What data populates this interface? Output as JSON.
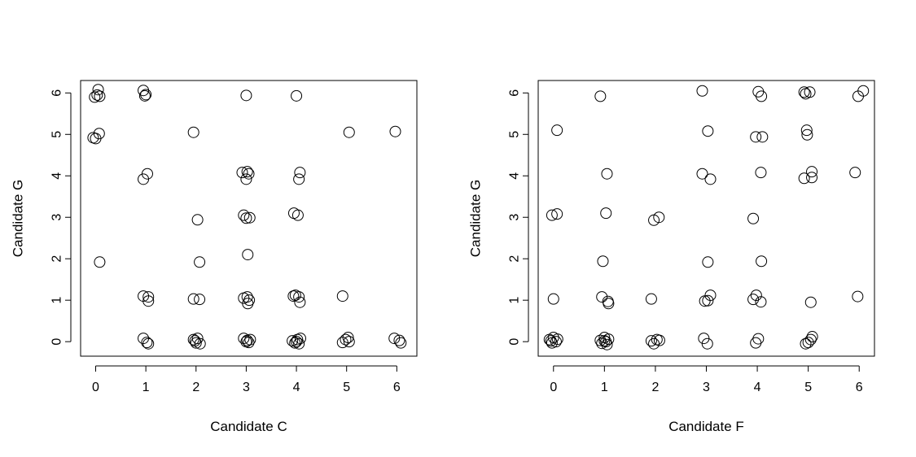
{
  "chart_data": [
    {
      "type": "scatter",
      "xlabel": "Candidate C",
      "ylabel": "Candidate G",
      "xlim": [
        -0.3,
        6.4
      ],
      "ylim": [
        -0.35,
        6.3
      ],
      "xticks": [
        "0",
        "1",
        "2",
        "3",
        "4",
        "5",
        "6"
      ],
      "yticks": [
        "0",
        "1",
        "2",
        "3",
        "4",
        "5",
        "6"
      ],
      "marker": "open-circle",
      "points": [
        [
          0.05,
          6.08
        ],
        [
          -0.02,
          5.9
        ],
        [
          0.03,
          5.95
        ],
        [
          0.08,
          5.92
        ],
        [
          0.95,
          6.06
        ],
        [
          0.98,
          5.93
        ],
        [
          1.0,
          5.96
        ],
        [
          3.0,
          5.94
        ],
        [
          4.0,
          5.93
        ],
        [
          -0.05,
          4.92
        ],
        [
          0.0,
          4.9
        ],
        [
          0.07,
          5.02
        ],
        [
          1.95,
          5.05
        ],
        [
          5.05,
          5.05
        ],
        [
          5.97,
          5.07
        ],
        [
          0.95,
          3.92
        ],
        [
          1.03,
          4.05
        ],
        [
          2.92,
          4.08
        ],
        [
          3.02,
          4.1
        ],
        [
          3.0,
          3.92
        ],
        [
          3.05,
          4.05
        ],
        [
          4.07,
          4.08
        ],
        [
          4.05,
          3.92
        ],
        [
          2.03,
          2.94
        ],
        [
          2.95,
          3.05
        ],
        [
          3.0,
          2.98
        ],
        [
          3.07,
          2.99
        ],
        [
          3.95,
          3.1
        ],
        [
          4.03,
          3.05
        ],
        [
          0.08,
          1.92
        ],
        [
          2.07,
          1.92
        ],
        [
          3.03,
          2.1
        ],
        [
          0.95,
          1.1
        ],
        [
          1.05,
          1.08
        ],
        [
          1.05,
          0.98
        ],
        [
          1.95,
          1.03
        ],
        [
          2.07,
          1.02
        ],
        [
          2.95,
          1.05
        ],
        [
          3.02,
          1.08
        ],
        [
          3.03,
          0.92
        ],
        [
          3.06,
          1.0
        ],
        [
          3.94,
          1.1
        ],
        [
          3.98,
          1.12
        ],
        [
          4.05,
          1.08
        ],
        [
          4.07,
          0.95
        ],
        [
          4.92,
          1.1
        ],
        [
          0.95,
          0.08
        ],
        [
          1.02,
          -0.02
        ],
        [
          1.05,
          -0.05
        ],
        [
          1.95,
          0.05
        ],
        [
          2.0,
          -0.03
        ],
        [
          2.03,
          0.08
        ],
        [
          2.08,
          -0.05
        ],
        [
          1.98,
          0.02
        ],
        [
          2.95,
          0.08
        ],
        [
          3.02,
          0.03
        ],
        [
          3.05,
          -0.02
        ],
        [
          3.08,
          0.05
        ],
        [
          3.0,
          0.0
        ],
        [
          3.92,
          0.02
        ],
        [
          3.97,
          -0.03
        ],
        [
          4.02,
          0.05
        ],
        [
          4.05,
          -0.05
        ],
        [
          4.08,
          0.08
        ],
        [
          4.0,
          0.0
        ],
        [
          4.92,
          -0.02
        ],
        [
          4.98,
          0.05
        ],
        [
          5.03,
          0.1
        ],
        [
          5.05,
          0.0
        ],
        [
          5.95,
          0.08
        ],
        [
          6.05,
          0.03
        ],
        [
          6.08,
          -0.03
        ]
      ]
    },
    {
      "type": "scatter",
      "xlabel": "Candidate F",
      "ylabel": "Candidate G",
      "xlim": [
        -0.3,
        6.3
      ],
      "ylim": [
        -0.35,
        6.3
      ],
      "xticks": [
        "0",
        "1",
        "2",
        "3",
        "4",
        "5",
        "6"
      ],
      "yticks": [
        "0",
        "1",
        "2",
        "3",
        "4",
        "5",
        "6"
      ],
      "marker": "open-circle",
      "points": [
        [
          0.92,
          5.92
        ],
        [
          2.92,
          6.05
        ],
        [
          4.02,
          6.03
        ],
        [
          4.08,
          5.92
        ],
        [
          4.92,
          6.02
        ],
        [
          4.95,
          5.98
        ],
        [
          5.03,
          6.02
        ],
        [
          5.98,
          5.92
        ],
        [
          6.08,
          6.05
        ],
        [
          0.07,
          5.1
        ],
        [
          3.03,
          5.08
        ],
        [
          3.97,
          4.94
        ],
        [
          4.1,
          4.94
        ],
        [
          4.97,
          5.1
        ],
        [
          4.98,
          4.99
        ],
        [
          1.05,
          4.05
        ],
        [
          2.92,
          4.05
        ],
        [
          3.08,
          3.92
        ],
        [
          4.07,
          4.08
        ],
        [
          4.92,
          3.94
        ],
        [
          5.07,
          4.1
        ],
        [
          5.07,
          3.96
        ],
        [
          5.92,
          4.08
        ],
        [
          -0.03,
          3.05
        ],
        [
          0.07,
          3.08
        ],
        [
          1.03,
          3.1
        ],
        [
          1.97,
          2.93
        ],
        [
          2.07,
          3.0
        ],
        [
          3.92,
          2.97
        ],
        [
          0.97,
          1.94
        ],
        [
          3.03,
          1.92
        ],
        [
          4.08,
          1.94
        ],
        [
          0.0,
          1.03
        ],
        [
          0.95,
          1.08
        ],
        [
          1.07,
          0.97
        ],
        [
          1.08,
          0.92
        ],
        [
          1.92,
          1.03
        ],
        [
          2.97,
          0.98
        ],
        [
          3.03,
          0.99
        ],
        [
          3.08,
          1.12
        ],
        [
          3.92,
          1.02
        ],
        [
          3.98,
          1.12
        ],
        [
          4.07,
          0.96
        ],
        [
          5.05,
          0.95
        ],
        [
          5.97,
          1.09
        ],
        [
          -0.08,
          0.05
        ],
        [
          -0.03,
          -0.03
        ],
        [
          0.0,
          0.1
        ],
        [
          0.05,
          0.0
        ],
        [
          0.08,
          0.06
        ],
        [
          -0.05,
          0.02
        ],
        [
          0.92,
          0.03
        ],
        [
          0.95,
          -0.04
        ],
        [
          1.0,
          0.1
        ],
        [
          1.03,
          0.0
        ],
        [
          1.05,
          -0.07
        ],
        [
          1.08,
          0.06
        ],
        [
          1.0,
          0.02
        ],
        [
          1.92,
          0.02
        ],
        [
          1.97,
          -0.05
        ],
        [
          2.03,
          0.05
        ],
        [
          2.08,
          0.03
        ],
        [
          2.95,
          0.08
        ],
        [
          3.02,
          -0.05
        ],
        [
          3.97,
          -0.03
        ],
        [
          4.02,
          0.07
        ],
        [
          4.95,
          -0.05
        ],
        [
          5.0,
          -0.02
        ],
        [
          5.05,
          0.05
        ],
        [
          5.08,
          0.12
        ]
      ]
    }
  ]
}
